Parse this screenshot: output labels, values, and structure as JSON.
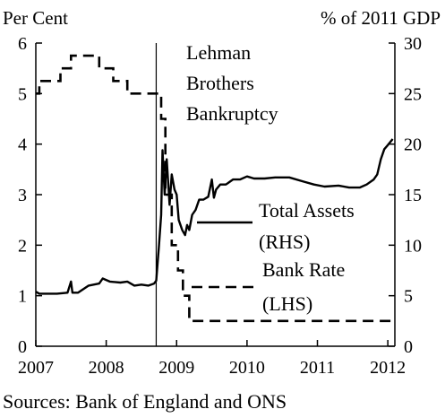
{
  "chart_data": {
    "type": "line",
    "left_axis_label": "Per Cent",
    "right_axis_label": "% of 2011 GDP",
    "left_ylim": [
      0,
      6
    ],
    "right_ylim": [
      0,
      30
    ],
    "left_ticks": [
      "0",
      "1",
      "2",
      "3",
      "4",
      "5",
      "6"
    ],
    "right_ticks": [
      "0",
      "5",
      "10",
      "15",
      "20",
      "25",
      "30"
    ],
    "xlim": [
      2007.0,
      2012.1
    ],
    "x_ticks": [
      "2007",
      "2008",
      "2009",
      "2010",
      "2011",
      "2012"
    ],
    "grid": false,
    "event": {
      "x": 2008.71,
      "label_lines": [
        "Lehman",
        "Brothers",
        "Bankruptcy"
      ]
    },
    "series": [
      {
        "label_lines": [
          "Total Assets",
          "(RHS)"
        ],
        "axis": "right",
        "style": "solid",
        "x": [
          2007.0,
          2007.05,
          2007.15,
          2007.3,
          2007.45,
          2007.5,
          2007.52,
          2007.6,
          2007.75,
          2007.9,
          2007.95,
          2008.05,
          2008.2,
          2008.3,
          2008.4,
          2008.5,
          2008.6,
          2008.68,
          2008.71,
          2008.75,
          2008.78,
          2008.8,
          2008.83,
          2008.86,
          2008.9,
          2008.93,
          2008.97,
          2009.0,
          2009.03,
          2009.08,
          2009.12,
          2009.15,
          2009.18,
          2009.22,
          2009.27,
          2009.32,
          2009.38,
          2009.45,
          2009.5,
          2009.53,
          2009.56,
          2009.62,
          2009.7,
          2009.8,
          2009.9,
          2010.0,
          2010.1,
          2010.25,
          2010.4,
          2010.6,
          2010.8,
          2010.95,
          2011.1,
          2011.3,
          2011.45,
          2011.6,
          2011.7,
          2011.8,
          2011.85,
          2011.9,
          2011.95,
          2012.0,
          2012.07
        ],
        "values": [
          5.4,
          5.2,
          5.2,
          5.2,
          5.3,
          6.4,
          5.3,
          5.3,
          6.0,
          6.2,
          6.7,
          6.4,
          6.3,
          6.4,
          6.0,
          6.1,
          6.0,
          6.2,
          6.5,
          10.0,
          13.0,
          19.4,
          15.0,
          18.5,
          14.0,
          17.0,
          15.5,
          15.0,
          12.5,
          11.5,
          11.0,
          12.0,
          11.5,
          13.0,
          13.5,
          14.5,
          14.5,
          14.8,
          16.5,
          14.7,
          15.5,
          16.0,
          16.0,
          16.5,
          16.5,
          16.8,
          16.6,
          16.6,
          16.7,
          16.7,
          16.3,
          16.0,
          15.8,
          15.9,
          15.7,
          15.7,
          16.0,
          16.5,
          17.0,
          18.5,
          19.5,
          19.9,
          20.5
        ]
      },
      {
        "label_lines": [
          "Bank Rate",
          "(LHS)"
        ],
        "axis": "left",
        "style": "dashed",
        "x": [
          2007.0,
          2007.05,
          2007.05,
          2007.35,
          2007.35,
          2007.5,
          2007.5,
          2007.9,
          2007.9,
          2008.1,
          2008.1,
          2008.3,
          2008.3,
          2008.78,
          2008.78,
          2008.84,
          2008.84,
          2008.93,
          2008.93,
          2009.02,
          2009.02,
          2009.09,
          2009.09,
          2009.18,
          2009.18,
          2012.1
        ],
        "values": [
          5.0,
          5.0,
          5.25,
          5.25,
          5.5,
          5.5,
          5.75,
          5.75,
          5.5,
          5.5,
          5.25,
          5.25,
          5.0,
          5.0,
          4.5,
          4.5,
          3.0,
          3.0,
          2.0,
          2.0,
          1.5,
          1.5,
          1.0,
          1.0,
          0.5,
          0.5
        ]
      }
    ]
  },
  "footer": {
    "sources": "Sources: Bank of England and ONS"
  }
}
